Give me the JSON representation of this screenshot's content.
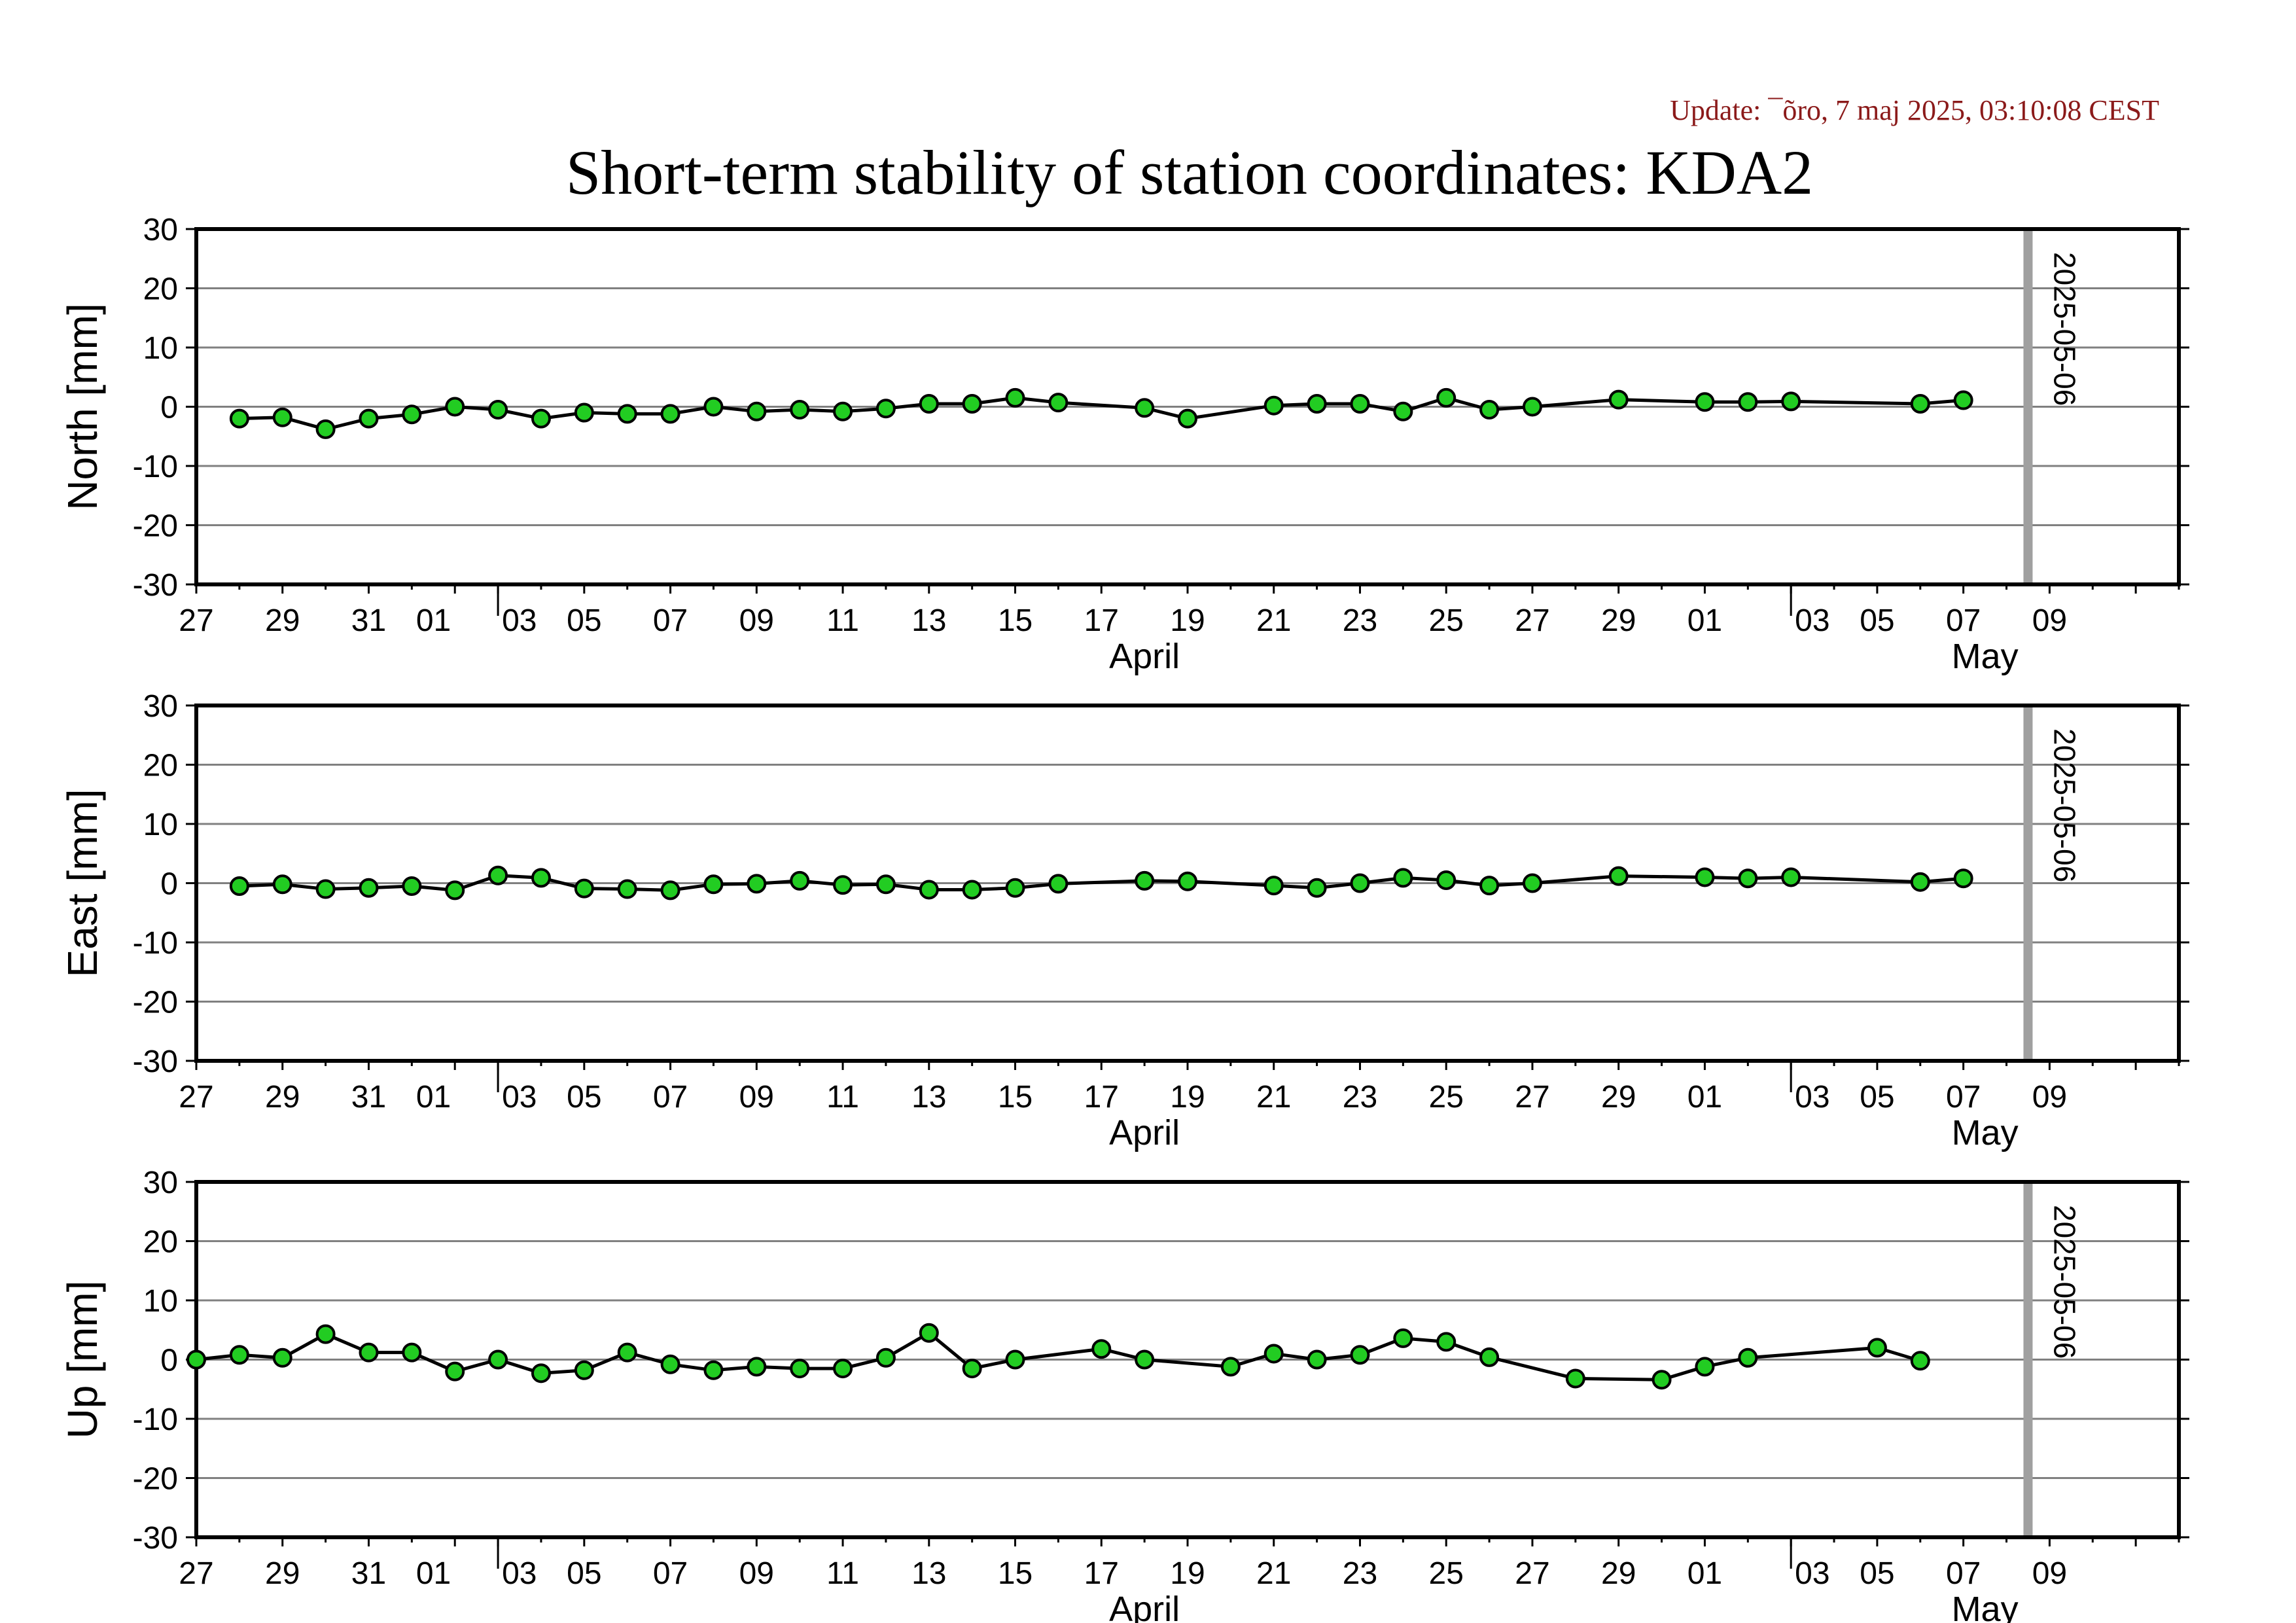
{
  "header": {
    "update": "Update: ¯õro, 7 maj 2025, 03:10:08 CEST",
    "title": "Short-term stability of station coordinates: KDA2"
  },
  "colors": {
    "marker_fill": "#22cc22",
    "marker_stroke": "#000000",
    "line": "#000000",
    "grid": "#808080",
    "vline": "#a0a0a0",
    "update_text": "#8b1a1a"
  },
  "chart_data": [
    {
      "type": "line",
      "ylabel": "North [mm]",
      "ylim": [
        -30,
        30
      ],
      "yticks": [
        30,
        20,
        10,
        0,
        -10,
        -20,
        -30
      ],
      "xlim": [
        "2025-03-25",
        "2025-05-10"
      ],
      "grid": true,
      "x_tick_labels": [
        "27",
        "29",
        "31",
        "01",
        "03",
        "05",
        "07",
        "09",
        "11",
        "13",
        "15",
        "17",
        "19",
        "21",
        "23",
        "25",
        "27",
        "29",
        "01",
        "03",
        "05",
        "07",
        "09"
      ],
      "months": [
        "April",
        "May"
      ],
      "marker_date": "2025-05-06",
      "x": [
        "2025-03-26",
        "2025-03-27",
        "2025-03-28",
        "2025-03-29",
        "2025-03-30",
        "2025-03-31",
        "2025-04-01",
        "2025-04-02",
        "2025-04-03",
        "2025-04-04",
        "2025-04-05",
        "2025-04-06",
        "2025-04-07",
        "2025-04-08",
        "2025-04-09",
        "2025-04-10",
        "2025-04-11",
        "2025-04-12",
        "2025-04-13",
        "2025-04-14",
        "2025-04-16",
        "2025-04-17",
        "2025-04-19",
        "2025-04-20",
        "2025-04-21",
        "2025-04-22",
        "2025-04-23",
        "2025-04-24",
        "2025-04-25",
        "2025-04-27",
        "2025-04-29",
        "2025-04-30",
        "2025-05-01",
        "2025-05-04",
        "2025-05-05"
      ],
      "y": [
        -2.0,
        -1.8,
        -3.8,
        -2.0,
        -1.3,
        0.0,
        -0.5,
        -2.0,
        -1.0,
        -1.2,
        -1.2,
        0.0,
        -0.8,
        -0.5,
        -0.8,
        -0.3,
        0.5,
        0.5,
        1.5,
        0.7,
        -0.2,
        -2.0,
        0.2,
        0.5,
        0.5,
        -0.8,
        1.5,
        -0.5,
        0.0,
        1.2,
        0.8,
        0.8,
        0.9,
        0.5,
        1.1
      ]
    },
    {
      "type": "line",
      "ylabel": "East [mm]",
      "ylim": [
        -30,
        30
      ],
      "yticks": [
        30,
        20,
        10,
        0,
        -10,
        -20,
        -30
      ],
      "xlim": [
        "2025-03-25",
        "2025-05-10"
      ],
      "grid": true,
      "x_tick_labels": [
        "27",
        "29",
        "31",
        "01",
        "03",
        "05",
        "07",
        "09",
        "11",
        "13",
        "15",
        "17",
        "19",
        "21",
        "23",
        "25",
        "27",
        "29",
        "01",
        "03",
        "05",
        "07",
        "09"
      ],
      "months": [
        "April",
        "May"
      ],
      "marker_date": "2025-05-06",
      "x": [
        "2025-03-26",
        "2025-03-27",
        "2025-03-28",
        "2025-03-29",
        "2025-03-30",
        "2025-03-31",
        "2025-04-01",
        "2025-04-02",
        "2025-04-03",
        "2025-04-04",
        "2025-04-05",
        "2025-04-06",
        "2025-04-07",
        "2025-04-08",
        "2025-04-09",
        "2025-04-10",
        "2025-04-11",
        "2025-04-12",
        "2025-04-13",
        "2025-04-14",
        "2025-04-16",
        "2025-04-17",
        "2025-04-19",
        "2025-04-20",
        "2025-04-21",
        "2025-04-22",
        "2025-04-23",
        "2025-04-24",
        "2025-04-25",
        "2025-04-27",
        "2025-04-29",
        "2025-04-30",
        "2025-05-01",
        "2025-05-04",
        "2025-05-05"
      ],
      "y": [
        -0.5,
        -0.2,
        -1.0,
        -0.8,
        -0.5,
        -1.2,
        1.3,
        0.9,
        -0.9,
        -1.0,
        -1.2,
        -0.2,
        -0.1,
        0.4,
        -0.3,
        -0.2,
        -1.1,
        -1.1,
        -0.8,
        -0.1,
        0.4,
        0.3,
        -0.4,
        -0.8,
        0.0,
        0.9,
        0.5,
        -0.4,
        0.0,
        1.2,
        1.0,
        0.8,
        1.0,
        0.2,
        0.8
      ]
    },
    {
      "type": "line",
      "ylabel": "Up [mm]",
      "ylim": [
        -30,
        30
      ],
      "yticks": [
        30,
        20,
        10,
        0,
        -10,
        -20,
        -30
      ],
      "xlim": [
        "2025-03-25",
        "2025-05-10"
      ],
      "grid": true,
      "x_tick_labels": [
        "27",
        "29",
        "31",
        "01",
        "03",
        "05",
        "07",
        "09",
        "11",
        "13",
        "15",
        "17",
        "19",
        "21",
        "23",
        "25",
        "27",
        "29",
        "01",
        "03",
        "05",
        "07",
        "09"
      ],
      "months": [
        "April",
        "May"
      ],
      "marker_date": "2025-05-06",
      "x": [
        "2025-03-25",
        "2025-03-26",
        "2025-03-27",
        "2025-03-28",
        "2025-03-29",
        "2025-03-30",
        "2025-03-31",
        "2025-04-01",
        "2025-04-02",
        "2025-04-03",
        "2025-04-04",
        "2025-04-05",
        "2025-04-06",
        "2025-04-07",
        "2025-04-08",
        "2025-04-09",
        "2025-04-10",
        "2025-04-11",
        "2025-04-12",
        "2025-04-13",
        "2025-04-15",
        "2025-04-16",
        "2025-04-18",
        "2025-04-19",
        "2025-04-20",
        "2025-04-21",
        "2025-04-22",
        "2025-04-23",
        "2025-04-24",
        "2025-04-26",
        "2025-04-28",
        "2025-04-29",
        "2025-04-30",
        "2025-05-03",
        "2025-05-04"
      ],
      "y": [
        0.0,
        0.8,
        0.3,
        4.3,
        1.2,
        1.2,
        -2.0,
        0.0,
        -2.3,
        -1.8,
        1.2,
        -0.8,
        -1.8,
        -1.2,
        -1.5,
        -1.5,
        0.3,
        4.5,
        -1.5,
        0.0,
        1.8,
        0.0,
        -1.2,
        1.0,
        0.0,
        0.8,
        3.6,
        3.0,
        0.4,
        -3.2,
        -3.4,
        -1.2,
        0.3,
        2.0,
        -0.2
      ]
    }
  ]
}
